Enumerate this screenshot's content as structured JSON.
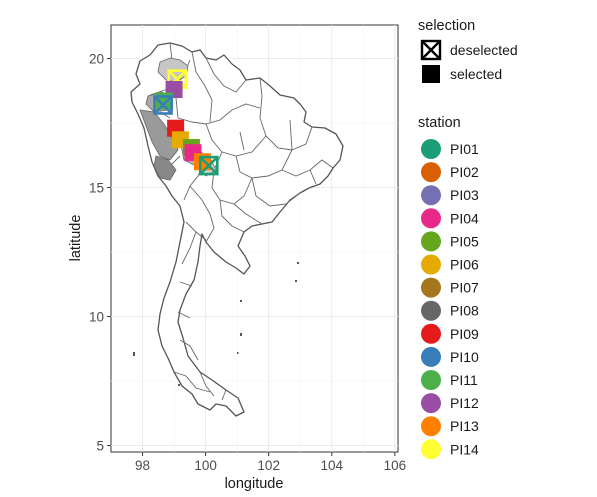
{
  "chart_data": {
    "type": "scatter",
    "subtype": "map",
    "xlabel": "longitude",
    "ylabel": "latitude",
    "xlim": [
      97,
      106.1
    ],
    "ylim": [
      4.75,
      21.3
    ],
    "x_ticks": [
      98,
      100,
      102,
      104,
      106
    ],
    "y_ticks": [
      5,
      10,
      15,
      20
    ],
    "grid": true,
    "legend_position": "right",
    "legends": [
      {
        "title": "selection",
        "entries": [
          {
            "label": "deselected",
            "shape": "square-cross-icon"
          },
          {
            "label": "selected",
            "shape": "filled-square-icon"
          }
        ]
      },
      {
        "title": "station",
        "entries": [
          {
            "label": "PI01",
            "color": "#1B9E77"
          },
          {
            "label": "PI02",
            "color": "#D95F02"
          },
          {
            "label": "PI03",
            "color": "#7570B3"
          },
          {
            "label": "PI04",
            "color": "#E7298A"
          },
          {
            "label": "PI05",
            "color": "#66A61E"
          },
          {
            "label": "PI06",
            "color": "#E6AB02"
          },
          {
            "label": "PI07",
            "color": "#A6761D"
          },
          {
            "label": "PI08",
            "color": "#666666"
          },
          {
            "label": "PI09",
            "color": "#E41A1C"
          },
          {
            "label": "PI10",
            "color": "#377EB8"
          },
          {
            "label": "PI11",
            "color": "#4DAF4A"
          },
          {
            "label": "PI12",
            "color": "#984EA3"
          },
          {
            "label": "PI13",
            "color": "#FF7F00"
          },
          {
            "label": "PI14",
            "color": "#FFFF33"
          }
        ]
      }
    ],
    "points": [
      {
        "station": "PI14",
        "x": 99.1,
        "y": 19.2,
        "selected": false,
        "color": "#FFFF33"
      },
      {
        "station": "PI12",
        "x": 99.0,
        "y": 18.8,
        "selected": true,
        "color": "#984EA3"
      },
      {
        "station": "PI11",
        "x": 98.7,
        "y": 18.35,
        "selected": true,
        "color": "#4DAF4A"
      },
      {
        "station": "PI10",
        "x": 98.65,
        "y": 18.2,
        "selected": false,
        "color": "#377EB8"
      },
      {
        "station": "PI09",
        "x": 99.05,
        "y": 17.3,
        "selected": true,
        "color": "#E41A1C"
      },
      {
        "station": "PI06",
        "x": 99.2,
        "y": 16.85,
        "selected": true,
        "color": "#E6AB02"
      },
      {
        "station": "PI05",
        "x": 99.55,
        "y": 16.55,
        "selected": true,
        "color": "#66A61E"
      },
      {
        "station": "PI04",
        "x": 99.6,
        "y": 16.35,
        "selected": true,
        "color": "#E7298A"
      },
      {
        "station": "PI13",
        "x": 99.9,
        "y": 16.0,
        "selected": true,
        "color": "#FF7F00"
      },
      {
        "station": "PI01",
        "x": 100.1,
        "y": 15.85,
        "selected": false,
        "color": "#1B9E77"
      }
    ]
  }
}
